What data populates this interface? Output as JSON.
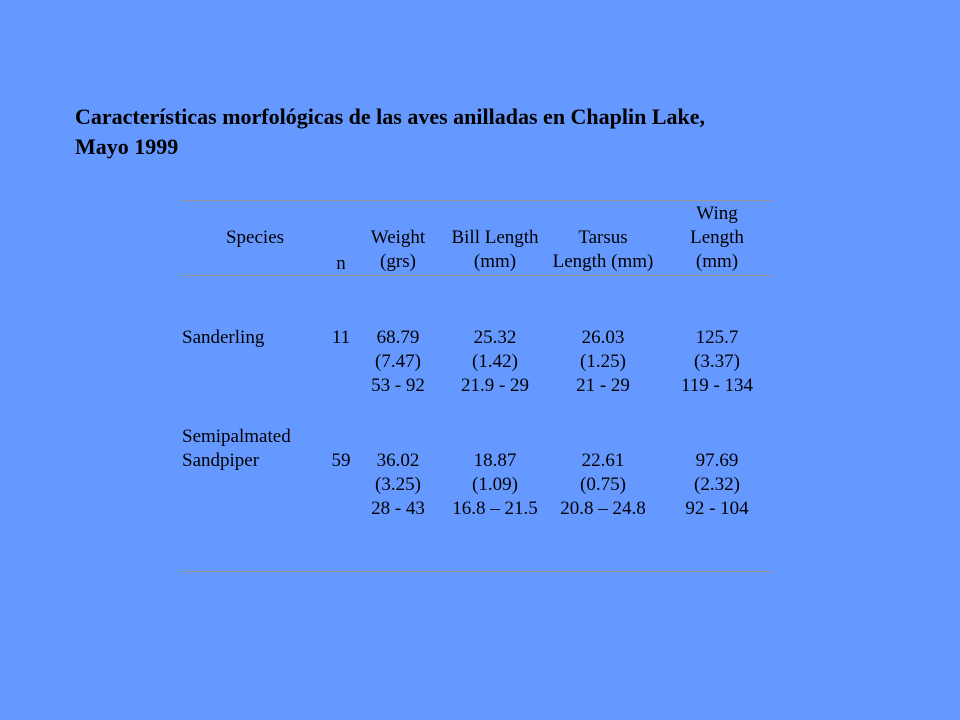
{
  "title": {
    "line1": "Características morfológicas de las aves anilladas en Chaplin Lake,",
    "line2": "Mayo 1999"
  },
  "table": {
    "headers": {
      "species": "Species",
      "n": "n",
      "weight": [
        "Weight",
        "(grs)"
      ],
      "bill_length": [
        "Bill Length",
        "(mm)"
      ],
      "tarsus": [
        "Tarsus",
        "Length (mm)"
      ],
      "wing": [
        "Wing",
        "Length",
        "(mm)"
      ]
    },
    "rows": [
      {
        "species": [
          "Sanderling"
        ],
        "n": "11",
        "weight": [
          "68.79",
          "(7.47)",
          "53 - 92"
        ],
        "bill_length": [
          "25.32",
          "(1.42)",
          "21.9 - 29"
        ],
        "tarsus": [
          "26.03",
          "(1.25)",
          "21 - 29"
        ],
        "wing": [
          "125.7",
          "(3.37)",
          "119 - 134"
        ]
      },
      {
        "species": [
          "Semipalmated",
          "Sandpiper"
        ],
        "n": "59",
        "weight": [
          "36.02",
          "(3.25)",
          "28 - 43"
        ],
        "bill_length": [
          "18.87",
          "(1.09)",
          "16.8 – 21.5"
        ],
        "tarsus": [
          "22.61",
          "(0.75)",
          "20.8 – 24.8"
        ],
        "wing": [
          "97.69",
          "(2.32)",
          "92 - 104"
        ]
      }
    ]
  }
}
